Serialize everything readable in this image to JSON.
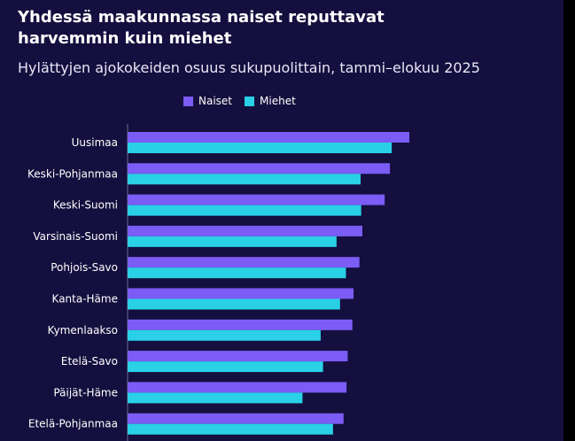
{
  "header": {
    "title": "Yhdessä maakunnassa naiset reputtavat\nharvemmin  kuin miehet",
    "subtitle": "Hylättyjen ajokokeiden osuus sukupuolittain, tammi–elokuu 2025"
  },
  "colors": {
    "background": "#140f3e",
    "naiset": "#7b5cf5",
    "miehet": "#29d0e6",
    "axis": "#6c6a8a"
  },
  "chart_data": {
    "type": "bar",
    "orientation": "horizontal",
    "title": "Yhdessä maakunnassa naiset reputtavat harvemmin  kuin miehet",
    "subtitle": "Hylättyjen ajokokeiden osuus sukupuolittain, tammi–elokuu 2025",
    "legend_position": "top-left",
    "grid": false,
    "xlim": [
      0,
      50
    ],
    "categories": [
      "Uusimaa",
      "Keski-Pohjanmaa",
      "Keski-Suomi",
      "Varsinais-Suomi",
      "Pohjois-Savo",
      "Kanta-Häme",
      "Kymenlaakso",
      "Etelä-Savo",
      "Päijät-Häme",
      "Etelä-Pohjanmaa"
    ],
    "series": [
      {
        "name": "Naiset",
        "values": [
          48.0,
          44.7,
          43.8,
          40.0,
          39.5,
          38.5,
          38.3,
          37.5,
          37.3,
          36.8
        ]
      },
      {
        "name": "Miehet",
        "values": [
          45.0,
          39.7,
          39.8,
          35.6,
          37.2,
          36.2,
          32.9,
          33.3,
          29.8,
          35.0
        ]
      }
    ]
  }
}
